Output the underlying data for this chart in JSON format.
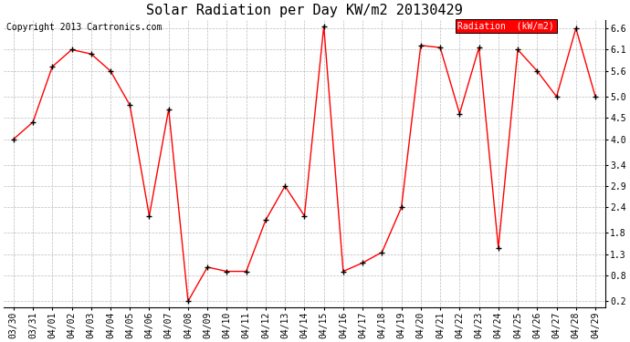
{
  "title": "Solar Radiation per Day KW/m2 20130429",
  "copyright": "Copyright 2013 Cartronics.com",
  "legend_label": "Radiation  (kW/m2)",
  "x_labels": [
    "03/30",
    "03/31",
    "04/01",
    "04/02",
    "04/03",
    "04/04",
    "04/05",
    "04/06",
    "04/07",
    "04/08",
    "04/09",
    "04/10",
    "04/11",
    "04/12",
    "04/13",
    "04/14",
    "04/15",
    "04/16",
    "04/17",
    "04/18",
    "04/19",
    "04/20",
    "04/21",
    "04/22",
    "04/23",
    "04/24",
    "04/25",
    "04/26",
    "04/27",
    "04/28",
    "04/29"
  ],
  "y_values": [
    4.0,
    4.4,
    5.7,
    6.1,
    6.0,
    5.6,
    4.8,
    2.2,
    4.7,
    0.2,
    1.0,
    0.9,
    0.9,
    2.1,
    2.9,
    2.2,
    6.65,
    0.9,
    1.1,
    1.35,
    2.4,
    6.2,
    6.15,
    4.6,
    6.15,
    1.45,
    6.1,
    5.6,
    5.0,
    6.6,
    5.0
  ],
  "y_ticks": [
    0.2,
    0.8,
    1.3,
    1.8,
    2.4,
    2.9,
    3.4,
    4.0,
    4.5,
    5.0,
    5.6,
    6.1,
    6.6
  ],
  "line_color": "red",
  "marker_color": "black",
  "background_color": "#ffffff",
  "grid_color": "#bbbbbb",
  "legend_bg": "red",
  "legend_text_color": "white",
  "ylim": [
    0.05,
    6.8
  ],
  "title_fontsize": 11,
  "tick_fontsize": 7,
  "copyright_fontsize": 7
}
